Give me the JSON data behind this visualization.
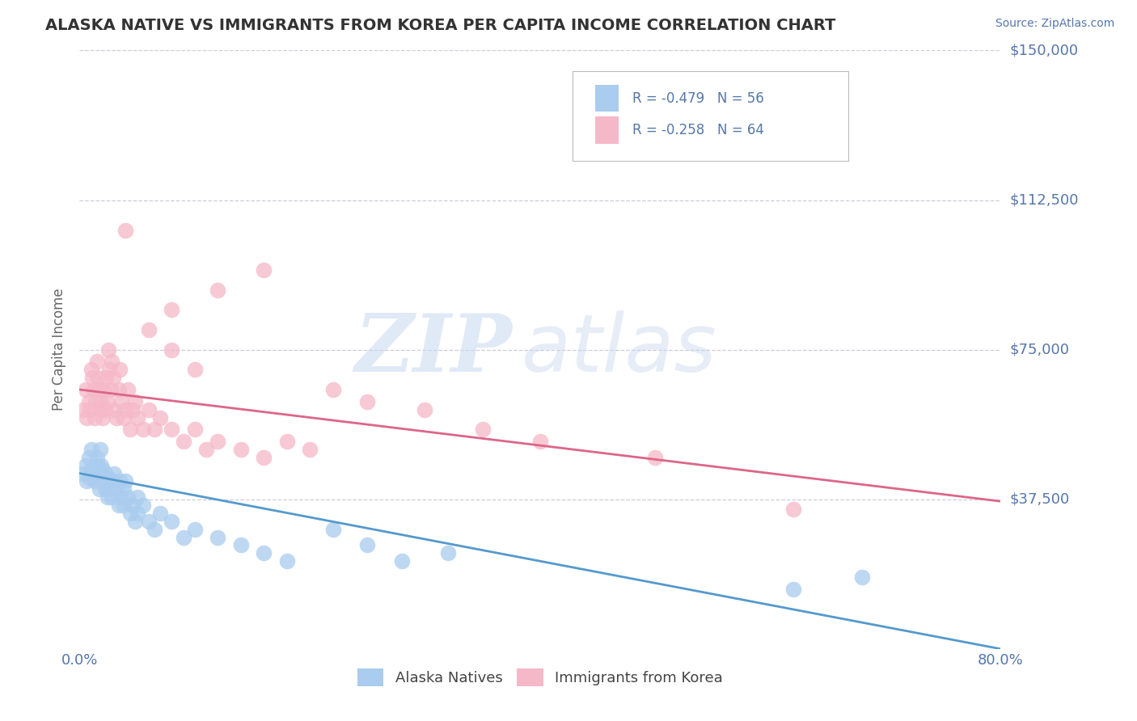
{
  "title": "ALASKA NATIVE VS IMMIGRANTS FROM KOREA PER CAPITA INCOME CORRELATION CHART",
  "source_text": "Source: ZipAtlas.com",
  "ylabel": "Per Capita Income",
  "xlim": [
    0.0,
    0.8
  ],
  "ylim": [
    0,
    150000
  ],
  "yticks": [
    0,
    37500,
    75000,
    112500,
    150000
  ],
  "ytick_labels": [
    "",
    "$37,500",
    "$75,000",
    "$112,500",
    "$150,000"
  ],
  "xticks": [
    0.0,
    0.1,
    0.2,
    0.3,
    0.4,
    0.5,
    0.6,
    0.7,
    0.8
  ],
  "watermark_zip": "ZIP",
  "watermark_atlas": "atlas",
  "legend_label_blue": "R = -0.479   N = 56",
  "legend_label_pink": "R = -0.258   N = 64",
  "legend_label1": "Alaska Natives",
  "legend_label2": "Immigrants from Korea",
  "blue_color": "#aaccee",
  "pink_color": "#f5b8c8",
  "blue_line_color": "#5599cc",
  "pink_line_color": "#dd6688",
  "title_color": "#333333",
  "axis_label_color": "#5577aa",
  "grid_color": "#ccccdd",
  "blue_intercept": 44000,
  "blue_slope": -55000,
  "pink_intercept": 65000,
  "pink_slope": -35000,
  "blue_scatter_x": [
    0.003,
    0.005,
    0.006,
    0.008,
    0.009,
    0.01,
    0.01,
    0.012,
    0.013,
    0.015,
    0.015,
    0.016,
    0.017,
    0.018,
    0.018,
    0.019,
    0.02,
    0.02,
    0.022,
    0.022,
    0.024,
    0.025,
    0.025,
    0.027,
    0.028,
    0.03,
    0.032,
    0.034,
    0.035,
    0.036,
    0.038,
    0.038,
    0.04,
    0.042,
    0.044,
    0.046,
    0.048,
    0.05,
    0.05,
    0.055,
    0.06,
    0.065,
    0.07,
    0.08,
    0.09,
    0.1,
    0.12,
    0.14,
    0.16,
    0.18,
    0.22,
    0.25,
    0.28,
    0.32,
    0.62,
    0.68
  ],
  "blue_scatter_y": [
    44000,
    46000,
    42000,
    48000,
    43000,
    50000,
    45000,
    44000,
    42000,
    48000,
    46000,
    44000,
    40000,
    50000,
    43000,
    46000,
    45000,
    42000,
    44000,
    40000,
    38000,
    43000,
    40000,
    42000,
    38000,
    44000,
    40000,
    36000,
    42000,
    38000,
    40000,
    36000,
    42000,
    38000,
    34000,
    36000,
    32000,
    38000,
    34000,
    36000,
    32000,
    30000,
    34000,
    32000,
    28000,
    30000,
    28000,
    26000,
    24000,
    22000,
    30000,
    26000,
    22000,
    24000,
    15000,
    18000
  ],
  "pink_scatter_x": [
    0.003,
    0.005,
    0.006,
    0.008,
    0.009,
    0.01,
    0.011,
    0.012,
    0.013,
    0.014,
    0.015,
    0.016,
    0.017,
    0.018,
    0.019,
    0.02,
    0.021,
    0.022,
    0.023,
    0.024,
    0.025,
    0.026,
    0.027,
    0.028,
    0.029,
    0.03,
    0.032,
    0.034,
    0.035,
    0.036,
    0.038,
    0.04,
    0.042,
    0.044,
    0.046,
    0.048,
    0.05,
    0.055,
    0.06,
    0.065,
    0.07,
    0.08,
    0.09,
    0.1,
    0.11,
    0.12,
    0.14,
    0.16,
    0.18,
    0.2,
    0.08,
    0.12,
    0.16,
    0.22,
    0.25,
    0.3,
    0.35,
    0.4,
    0.5,
    0.62,
    0.04,
    0.06,
    0.08,
    0.1
  ],
  "pink_scatter_y": [
    60000,
    65000,
    58000,
    62000,
    60000,
    70000,
    68000,
    65000,
    58000,
    62000,
    72000,
    68000,
    65000,
    60000,
    62000,
    58000,
    65000,
    60000,
    68000,
    62000,
    75000,
    70000,
    65000,
    72000,
    68000,
    60000,
    58000,
    65000,
    70000,
    62000,
    58000,
    60000,
    65000,
    55000,
    60000,
    62000,
    58000,
    55000,
    60000,
    55000,
    58000,
    55000,
    52000,
    55000,
    50000,
    52000,
    50000,
    48000,
    52000,
    50000,
    85000,
    90000,
    95000,
    65000,
    62000,
    60000,
    55000,
    52000,
    48000,
    35000,
    105000,
    80000,
    75000,
    70000
  ]
}
